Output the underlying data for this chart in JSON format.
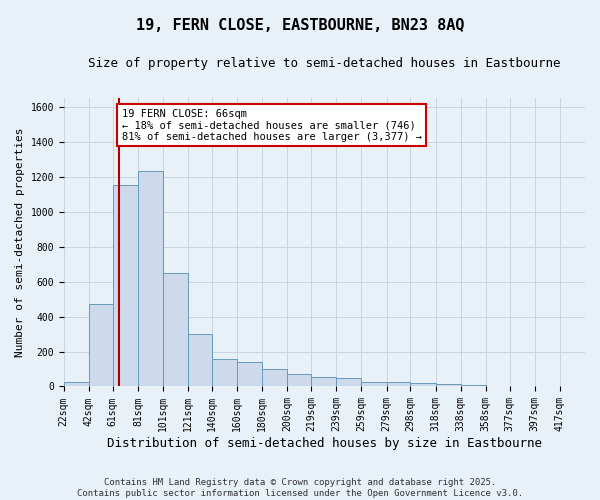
{
  "title1": "19, FERN CLOSE, EASTBOURNE, BN23 8AQ",
  "title2": "Size of property relative to semi-detached houses in Eastbourne",
  "xlabel": "Distribution of semi-detached houses by size in Eastbourne",
  "ylabel": "Number of semi-detached properties",
  "bin_labels": [
    "22sqm",
    "42sqm",
    "61sqm",
    "81sqm",
    "101sqm",
    "121sqm",
    "140sqm",
    "160sqm",
    "180sqm",
    "200sqm",
    "219sqm",
    "239sqm",
    "259sqm",
    "279sqm",
    "298sqm",
    "318sqm",
    "338sqm",
    "358sqm",
    "377sqm",
    "397sqm",
    "417sqm"
  ],
  "bin_edges": [
    22,
    42,
    61,
    81,
    101,
    121,
    140,
    160,
    180,
    200,
    219,
    239,
    259,
    279,
    298,
    318,
    338,
    358,
    377,
    397,
    417
  ],
  "bar_heights": [
    28,
    470,
    1150,
    1230,
    650,
    300,
    155,
    140,
    100,
    70,
    55,
    50,
    28,
    28,
    18,
    14,
    7,
    4,
    2,
    1,
    1
  ],
  "bar_color": "#ccdaeb",
  "bar_edge_color": "#6699bb",
  "property_size": 66,
  "property_line_color": "#aa0000",
  "annotation_text": "19 FERN CLOSE: 66sqm\n← 18% of semi-detached houses are smaller (746)\n81% of semi-detached houses are larger (3,377) →",
  "annotation_box_color": "#ffffff",
  "annotation_box_edge": "#cc0000",
  "ylim": [
    0,
    1650
  ],
  "yticks": [
    0,
    200,
    400,
    600,
    800,
    1000,
    1200,
    1400,
    1600
  ],
  "grid_color": "#c8d4e4",
  "background_color": "#e8f0f8",
  "footer": "Contains HM Land Registry data © Crown copyright and database right 2025.\nContains public sector information licensed under the Open Government Licence v3.0.",
  "title1_fontsize": 11,
  "title2_fontsize": 9,
  "xlabel_fontsize": 9,
  "ylabel_fontsize": 8,
  "tick_fontsize": 7,
  "annotation_fontsize": 7.5,
  "footer_fontsize": 6.5
}
